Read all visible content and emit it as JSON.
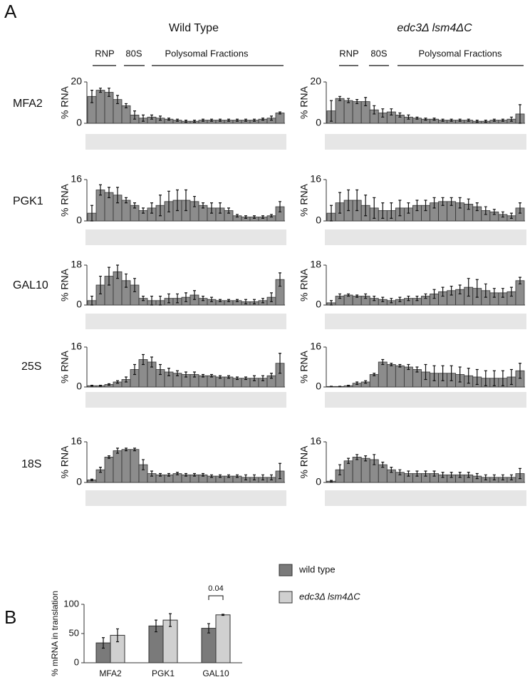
{
  "panel_a": {
    "label": "A",
    "columns": [
      {
        "title": "Wild Type",
        "labels": [
          "RNP",
          "80S",
          "Polysomal Fractions"
        ]
      },
      {
        "title": "edc3Δ lsm4ΔC",
        "labels": [
          "RNP",
          "80S",
          "Polysomal Fractions"
        ]
      }
    ],
    "row_labels": [
      "MFA2",
      "PGK1",
      "GAL10",
      "25S",
      "18S"
    ]
  },
  "panel_b": {
    "label": "B"
  },
  "chart_data": [
    {
      "type": "bar",
      "y_label": "% RNA",
      "color": "#8c8c8c",
      "ylim": [
        0,
        20
      ],
      "yticks": [
        0,
        20
      ],
      "values": [
        13,
        16,
        15,
        11.5,
        8.5,
        4,
        2.5,
        3,
        2.5,
        2,
        1.5,
        1,
        1,
        1.5,
        1.5,
        1.5,
        1.5,
        1.5,
        1.5,
        1.5,
        2,
        2.5,
        5
      ],
      "errors": [
        3,
        1,
        2,
        2,
        1,
        2,
        1.5,
        1,
        1,
        0.5,
        0.5,
        0.5,
        0.5,
        0.5,
        0.5,
        0.5,
        0.5,
        0.5,
        0.5,
        0.5,
        0.5,
        1,
        0.5
      ]
    },
    {
      "type": "bar",
      "y_label": "% RNA",
      "color": "#8c8c8c",
      "ylim": [
        0,
        20
      ],
      "yticks": [
        0,
        20
      ],
      "values": [
        6,
        12,
        11,
        10.5,
        10.5,
        6.5,
        5,
        5.5,
        4,
        3,
        2.5,
        2,
        2,
        1.5,
        1.5,
        1.5,
        1.5,
        1,
        1,
        1.5,
        1.5,
        2,
        4.5
      ],
      "errors": [
        5,
        1,
        1,
        1,
        2,
        2,
        2,
        1.5,
        1,
        1,
        0.5,
        0.5,
        0.5,
        0.5,
        0.5,
        0.5,
        0.5,
        0.5,
        0.5,
        0.5,
        0.5,
        1,
        4.5
      ]
    },
    {
      "type": "bar",
      "y_label": "% RNA",
      "color": "#8c8c8c",
      "ylim": [
        0,
        16
      ],
      "yticks": [
        0,
        16
      ],
      "values": [
        3,
        12,
        11,
        10,
        8,
        6,
        4,
        5,
        6,
        7.5,
        8,
        8,
        7.5,
        6,
        5,
        5,
        4,
        2,
        1.5,
        1.5,
        1.5,
        2,
        5.5
      ],
      "errors": [
        3,
        2,
        2,
        3,
        1,
        1,
        1,
        2,
        4,
        4,
        4,
        4,
        2,
        1,
        2,
        2,
        1,
        0.5,
        0.5,
        0.5,
        0.5,
        0.5,
        2
      ]
    },
    {
      "type": "bar",
      "y_label": "% RNA",
      "color": "#8c8c8c",
      "ylim": [
        0,
        16
      ],
      "yticks": [
        0,
        16
      ],
      "values": [
        3,
        7,
        8,
        8,
        6,
        5,
        4,
        4,
        5,
        5,
        6,
        6,
        7,
        7.5,
        7.5,
        7,
        6.5,
        5.5,
        4,
        3.5,
        2.5,
        2,
        5
      ],
      "errors": [
        3,
        4,
        4,
        4,
        4,
        4,
        3,
        3,
        3,
        2,
        2,
        2,
        2,
        1.5,
        1.5,
        2,
        2,
        1.5,
        1.5,
        1,
        1,
        1,
        2
      ]
    },
    {
      "type": "bar",
      "y_label": "% RNA",
      "color": "#8c8c8c",
      "ylim": [
        0,
        18
      ],
      "yticks": [
        0,
        18
      ],
      "values": [
        2,
        9,
        13,
        15,
        11,
        9,
        3,
        2,
        2,
        3,
        3,
        3.5,
        4.5,
        3,
        2.5,
        2,
        2,
        2,
        1.5,
        1.5,
        2,
        3.5,
        11.5
      ],
      "errors": [
        2,
        4,
        4,
        3,
        3,
        3,
        1,
        2,
        2,
        2,
        2,
        2,
        2,
        1,
        1,
        0.5,
        0.5,
        0.5,
        1,
        1,
        1,
        2,
        3
      ]
    },
    {
      "type": "bar",
      "y_label": "% RNA",
      "color": "#8c8c8c",
      "ylim": [
        0,
        18
      ],
      "yticks": [
        0,
        18
      ],
      "values": [
        1,
        4,
        4.5,
        4,
        4,
        3,
        2.5,
        2,
        2.5,
        3,
        3,
        4,
        5,
        6,
        6.5,
        7,
        8,
        7.5,
        6.5,
        5.5,
        5.5,
        6,
        11
      ],
      "errors": [
        1,
        1,
        0.5,
        0.5,
        1,
        1,
        1,
        1,
        1,
        1,
        1,
        1,
        2,
        2,
        2,
        2,
        4,
        4,
        3,
        2,
        2,
        2,
        1.5
      ]
    },
    {
      "type": "bar",
      "y_label": "% RNA",
      "color": "#8c8c8c",
      "ylim": [
        0,
        16
      ],
      "yticks": [
        0,
        16
      ],
      "values": [
        0.5,
        0.5,
        1,
        2,
        3,
        7,
        11,
        10,
        7,
        6,
        5.5,
        5,
        5,
        4.5,
        4.5,
        4,
        4,
        3.5,
        3.5,
        3.5,
        3.5,
        4.5,
        9.5
      ],
      "errors": [
        0.2,
        0.2,
        0.3,
        0.5,
        1,
        2,
        2,
        2,
        2,
        1.5,
        1,
        1,
        1,
        0.5,
        0.5,
        0.5,
        0.5,
        0.5,
        0.5,
        1,
        1,
        1,
        4
      ]
    },
    {
      "type": "bar",
      "y_label": "% RNA",
      "color": "#8c8c8c",
      "ylim": [
        0,
        16
      ],
      "yticks": [
        0,
        16
      ],
      "values": [
        0.2,
        0.2,
        0.5,
        1.5,
        2,
        5,
        10,
        9,
        8.5,
        8,
        7,
        6,
        5.5,
        5.5,
        5.5,
        5,
        4.5,
        4,
        3.5,
        3.5,
        3.5,
        4,
        6.5
      ],
      "errors": [
        0.1,
        0.1,
        0.2,
        0.5,
        0.5,
        0.5,
        1,
        0.5,
        0.5,
        1,
        1,
        3,
        3,
        3,
        3,
        3,
        3,
        3,
        3,
        3,
        3,
        3,
        3
      ]
    },
    {
      "type": "bar",
      "y_label": "% RNA",
      "color": "#8c8c8c",
      "ylim": [
        0,
        16
      ],
      "yticks": [
        0,
        16
      ],
      "values": [
        1,
        5,
        10,
        12.5,
        13,
        13,
        7,
        3.5,
        3,
        3,
        3.5,
        3,
        3,
        3,
        2.5,
        2.5,
        2.5,
        2.5,
        2,
        2,
        2,
        2,
        4.5
      ],
      "errors": [
        0.3,
        1,
        0.5,
        1,
        0.5,
        0.5,
        2,
        1,
        0.5,
        0.5,
        0.5,
        0.5,
        0.5,
        0.5,
        0.5,
        0.5,
        0.5,
        0.5,
        1,
        1,
        1,
        1,
        3
      ]
    },
    {
      "type": "bar",
      "y_label": "% RNA",
      "color": "#8c8c8c",
      "ylim": [
        0,
        16
      ],
      "yticks": [
        0,
        16
      ],
      "values": [
        0.5,
        5,
        8.5,
        10,
        9.5,
        9,
        7,
        5,
        4,
        3.5,
        3.5,
        3.5,
        3.5,
        3,
        3,
        3,
        3,
        2.5,
        2,
        2,
        2,
        2,
        3.5
      ],
      "errors": [
        0.3,
        2,
        1,
        1,
        1,
        2,
        1,
        1,
        1,
        1,
        1,
        1,
        1,
        1,
        1,
        1,
        1,
        1,
        1,
        1,
        1,
        1,
        2
      ]
    },
    {
      "type": "bar",
      "y_label": "% mRNA in translation",
      "ylim": [
        0,
        100
      ],
      "yticks": [
        0,
        50,
        100
      ],
      "categories": [
        "MFA2",
        "PGK1",
        "GAL10"
      ],
      "series": [
        {
          "name": "wild type",
          "color": "#7a7a7a",
          "values": [
            34,
            63,
            59
          ],
          "errors": [
            9,
            10,
            8
          ]
        },
        {
          "name": "edc3Δ lsm4ΔC",
          "color": "#d0d0d0",
          "values": [
            47,
            73,
            82
          ],
          "errors": [
            11,
            11,
            1
          ]
        }
      ],
      "annotation": "0.04"
    }
  ]
}
